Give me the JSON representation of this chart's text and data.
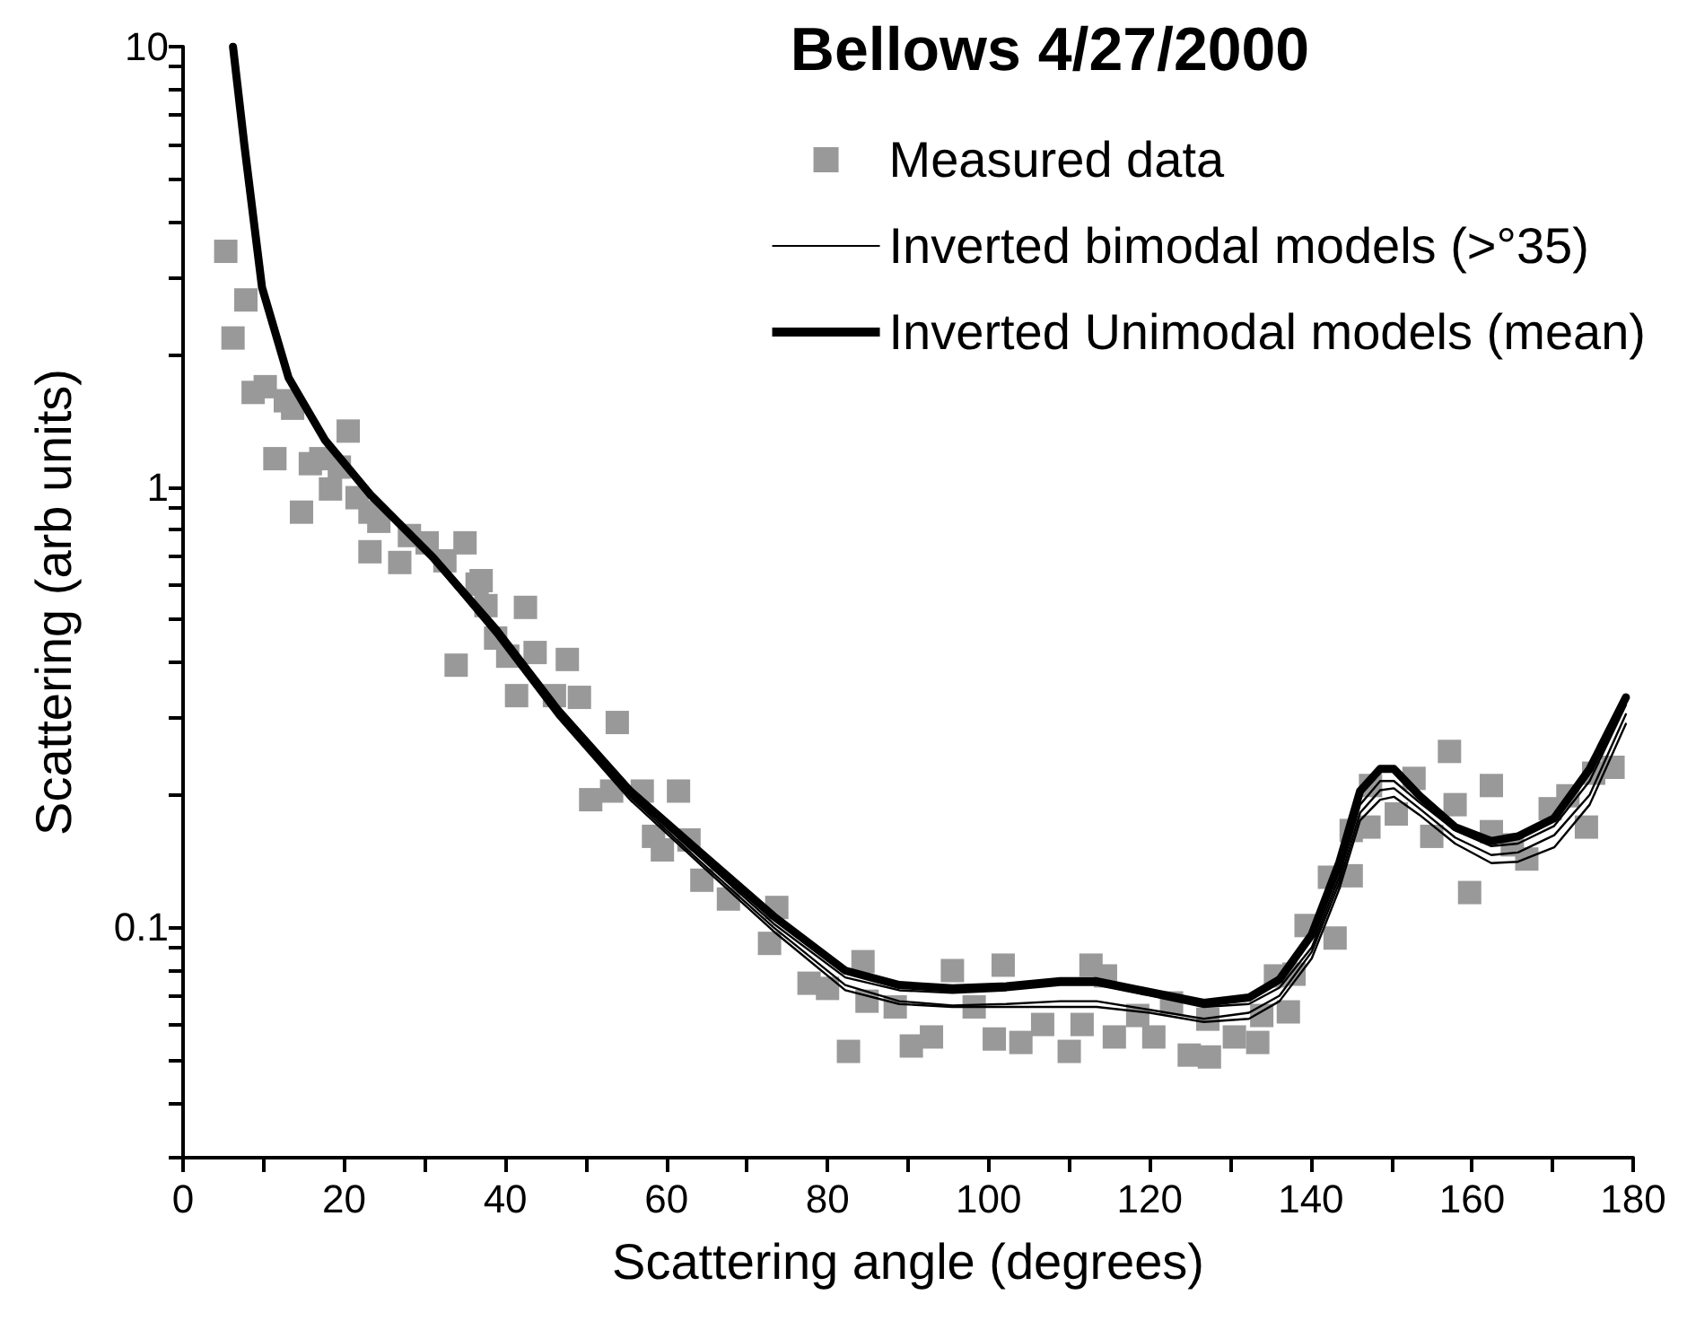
{
  "chart_data": {
    "type": "line",
    "title": "Bellows 4/27/2000",
    "xlabel": "Scattering angle (degrees)",
    "ylabel": "Scattering (arb units)",
    "log": "y",
    "grid": false,
    "legend": "top right",
    "xlim": [
      0,
      180
    ],
    "xticks": [
      0,
      {
        "value": 10,
        "label": null
      },
      20,
      {
        "value": 30,
        "label": null
      },
      40,
      {
        "value": 50,
        "label": null
      },
      60,
      {
        "value": 70,
        "label": null
      },
      80,
      {
        "value": 90,
        "label": null
      },
      100,
      {
        "value": 110,
        "label": null
      },
      120,
      {
        "value": 130,
        "label": null
      },
      140,
      {
        "value": 150,
        "label": null
      },
      160,
      {
        "value": 170,
        "label": null
      },
      180
    ],
    "ylim": [
      0.03,
      10
    ],
    "yticks": [
      {
        "value": 0.03,
        "label": null
      },
      {
        "value": 0.04,
        "label": null
      },
      {
        "value": 0.05,
        "label": null
      },
      {
        "value": 0.06,
        "label": null
      },
      {
        "value": 0.07,
        "label": null
      },
      {
        "value": 0.08,
        "label": null
      },
      {
        "value": 0.09,
        "label": null
      },
      {
        "value": 0.1,
        "label": "0.1"
      },
      {
        "value": 0.2,
        "label": null
      },
      {
        "value": 0.3,
        "label": null
      },
      {
        "value": 0.4,
        "label": null
      },
      {
        "value": 0.5,
        "label": null
      },
      {
        "value": 0.6,
        "label": null
      },
      {
        "value": 0.7,
        "label": null
      },
      {
        "value": 0.8,
        "label": null
      },
      {
        "value": 0.9,
        "label": null
      },
      1,
      {
        "value": 2,
        "label": null
      },
      {
        "value": 3,
        "label": null
      },
      {
        "value": 4,
        "label": null
      },
      {
        "value": 5,
        "label": null
      },
      {
        "value": 6,
        "label": null
      },
      {
        "value": 7,
        "label": null
      },
      {
        "value": 8,
        "label": null
      },
      {
        "value": 9,
        "label": null
      },
      10
    ],
    "series": [
      {
        "type": "scatter",
        "name": "Measured data",
        "color": "#999999",
        "marker": "square",
        "x": [
          5.3,
          6.2,
          7.8,
          8.7,
          10.2,
          11.4,
          12.7,
          13.6,
          14.7,
          15.8,
          17.1,
          18.3,
          19.4,
          20.5,
          21.6,
          23.2,
          23.2,
          24.3,
          26.9,
          28.1,
          30.3,
          32.5,
          33.9,
          35.0,
          36.5,
          37.0,
          37.6,
          38.8,
          40.3,
          41.4,
          42.5,
          43.7,
          46.1,
          47.7,
          49.2,
          50.6,
          53.2,
          53.9,
          57.0,
          58.4,
          59.5,
          61.5,
          62.8,
          64.4,
          67.7,
          72.8,
          73.7,
          77.7,
          80.0,
          82.6,
          84.4,
          84.9,
          88.4,
          90.4,
          92.9,
          95.5,
          98.2,
          100.7,
          101.8,
          104.0,
          106.7,
          110.0,
          111.6,
          112.7,
          114.5,
          115.6,
          118.5,
          120.5,
          122.7,
          124.9,
          127.2,
          127.4,
          130.5,
          133.4,
          133.9,
          135.6,
          137.2,
          137.9,
          139.4,
          142.3,
          143.0,
          145.0,
          145.0,
          147.2,
          147.4,
          150.6,
          152.8,
          155.0,
          157.2,
          157.9,
          159.7,
          162.4,
          162.4,
          165.0,
          166.8,
          169.7,
          171.9,
          174.2,
          175.1,
          177.5
        ],
        "values": [
          3.43,
          2.18,
          2.66,
          1.64,
          1.69,
          1.16,
          1.57,
          1.51,
          0.877,
          1.13,
          1.16,
          0.99,
          1.11,
          1.34,
          0.946,
          0.877,
          0.713,
          0.836,
          0.674,
          0.776,
          0.747,
          0.68,
          0.394,
          0.747,
          0.602,
          0.613,
          0.538,
          0.454,
          0.413,
          0.336,
          0.533,
          0.421,
          0.336,
          0.406,
          0.333,
          0.195,
          0.204,
          0.292,
          0.204,
          0.161,
          0.15,
          0.204,
          0.158,
          0.128,
          0.116,
          0.092,
          0.111,
          0.0747,
          0.0727,
          0.0523,
          0.0836,
          0.068,
          0.066,
          0.0538,
          0.0564,
          0.0798,
          0.066,
          0.0558,
          0.0821,
          0.0548,
          0.0602,
          0.0523,
          0.0602,
          0.0821,
          0.0776,
          0.0564,
          0.0631,
          0.0564,
          0.0674,
          0.0513,
          0.0619,
          0.0508,
          0.0564,
          0.0548,
          0.0631,
          0.0776,
          0.0643,
          0.0783,
          0.101,
          0.13,
          0.0946,
          0.131,
          0.166,
          0.169,
          0.21,
          0.181,
          0.218,
          0.161,
          0.251,
          0.19,
          0.12,
          0.21,
          0.165,
          0.154,
          0.143,
          0.186,
          0.199,
          0.169,
          0.224,
          0.231
        ]
      },
      {
        "name": "Inverted bimodal models (>°35)",
        "color": "#000000",
        "marker": "none",
        "x": [
          6.2,
          7.6,
          9.8,
          13.1,
          17.6,
          23.2,
          31,
          38.8,
          46.5,
          55.5,
          64.4,
          73.3,
          82.2,
          88.9,
          95.5,
          102.2,
          108.9,
          113.4,
          120,
          126.7,
          132.3,
          136.1,
          140.1,
          143.5,
          146.1,
          148.6,
          150.3,
          153.5,
          157.9,
          162.4,
          165.7,
          170.2,
          174.6,
          179.1
        ],
        "values": [
          9.8,
          6.1,
          2.95,
          1.82,
          1.3,
          0.97,
          0.69,
          0.47,
          0.305,
          0.2,
          0.143,
          0.102,
          0.077,
          0.072,
          0.071,
          0.072,
          0.074,
          0.074,
          0.07,
          0.066,
          0.067,
          0.073,
          0.09,
          0.13,
          0.19,
          0.215,
          0.215,
          0.192,
          0.166,
          0.153,
          0.155,
          0.17,
          0.215,
          0.32
        ]
      },
      {
        "color": "#000000",
        "marker": "none",
        "x": [
          6.2,
          7.6,
          9.8,
          13.1,
          17.6,
          23.2,
          31,
          38.8,
          46.5,
          55.5,
          64.4,
          73.3,
          82.2,
          88.9,
          95.5,
          102.2,
          108.9,
          113.4,
          120,
          126.7,
          132.3,
          136.1,
          140.1,
          143.5,
          146.1,
          148.6,
          150.3,
          153.5,
          157.9,
          162.4,
          165.7,
          170.2,
          174.6,
          179.1
        ],
        "values": [
          9.6,
          5.9,
          2.9,
          1.8,
          1.27,
          0.95,
          0.68,
          0.46,
          0.3,
          0.195,
          0.138,
          0.098,
          0.072,
          0.067,
          0.066,
          0.066,
          0.066,
          0.066,
          0.064,
          0.061,
          0.062,
          0.068,
          0.085,
          0.122,
          0.175,
          0.195,
          0.198,
          0.18,
          0.155,
          0.14,
          0.141,
          0.152,
          0.19,
          0.29
        ]
      },
      {
        "color": "#000000",
        "marker": "none",
        "x": [
          6.2,
          7.6,
          9.8,
          13.1,
          17.6,
          23.2,
          31,
          38.8,
          46.5,
          55.5,
          64.4,
          73.3,
          82.2,
          88.9,
          95.5,
          102.2,
          108.9,
          113.4,
          120,
          126.7,
          132.3,
          136.1,
          140.1,
          143.5,
          146.1,
          148.6,
          150.3,
          153.5,
          157.9,
          162.4,
          165.7,
          170.2,
          174.6,
          179.1
        ],
        "values": [
          9.7,
          6.0,
          2.88,
          1.79,
          1.29,
          0.96,
          0.685,
          0.465,
          0.303,
          0.198,
          0.14,
          0.1,
          0.074,
          0.068,
          0.0665,
          0.067,
          0.068,
          0.068,
          0.065,
          0.062,
          0.064,
          0.07,
          0.088,
          0.126,
          0.182,
          0.205,
          0.207,
          0.186,
          0.16,
          0.146,
          0.148,
          0.162,
          0.2,
          0.305
        ]
      },
      {
        "name": "Inverted Unimodal models (mean)",
        "color": "#000000",
        "marker": "none",
        "x": [
          6.2,
          7.6,
          9.8,
          13.1,
          17.6,
          23.2,
          31,
          38.8,
          46.5,
          55.5,
          64.4,
          73.3,
          82.2,
          88.9,
          95.5,
          102.2,
          108.9,
          113.4,
          120,
          126.7,
          132.3,
          136.1,
          140.1,
          143.5,
          146.1,
          148.6,
          150.3,
          153.5,
          157.9,
          162.4,
          165.7,
          170.2,
          174.6,
          179.1
        ],
        "values": [
          10,
          6.0,
          2.84,
          1.77,
          1.28,
          0.963,
          0.693,
          0.476,
          0.312,
          0.204,
          0.147,
          0.106,
          0.0798,
          0.074,
          0.0727,
          0.0735,
          0.0755,
          0.0755,
          0.0713,
          0.0674,
          0.0693,
          0.0762,
          0.0963,
          0.14,
          0.204,
          0.229,
          0.229,
          0.199,
          0.169,
          0.157,
          0.161,
          0.177,
          0.229,
          0.333
        ]
      }
    ]
  }
}
